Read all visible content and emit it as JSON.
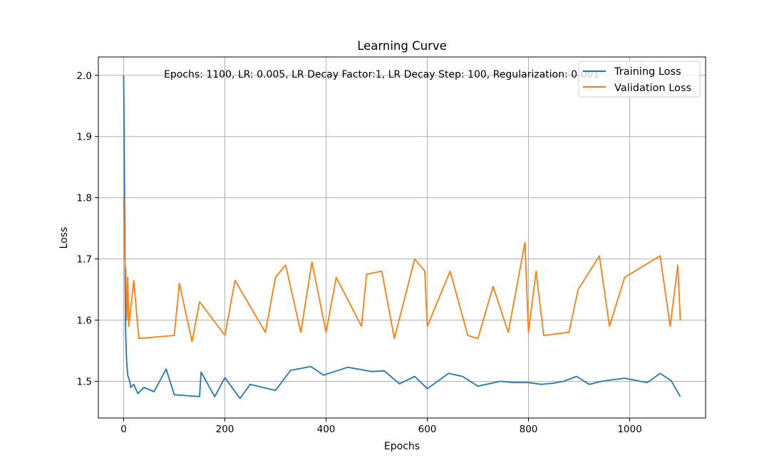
{
  "chart_data": {
    "type": "line",
    "title": "Learning Curve",
    "xlabel": "Epochs",
    "ylabel": "Loss",
    "xlim": [
      -50,
      1150
    ],
    "ylim": [
      1.44,
      2.03
    ],
    "x_ticks": [
      0,
      200,
      400,
      600,
      800,
      1000
    ],
    "y_ticks": [
      1.5,
      1.6,
      1.7,
      1.8,
      1.9,
      2.0
    ],
    "grid": true,
    "legend_position": "top-right",
    "annotation": "Epochs: 1100, LR: 0.005, LR Decay Factor:1, LR Decay Step: 100, Regularization: 0.001",
    "series": [
      {
        "name": "Training Loss",
        "color": "#1f77b4",
        "points": [
          [
            0,
            2.0
          ],
          [
            1,
            1.9
          ],
          [
            2,
            1.78
          ],
          [
            3,
            1.66
          ],
          [
            4,
            1.58
          ],
          [
            5,
            1.55
          ],
          [
            6,
            1.53
          ],
          [
            8,
            1.51
          ],
          [
            10,
            1.505
          ],
          [
            12,
            1.5
          ],
          [
            14,
            1.49
          ],
          [
            20,
            1.495
          ],
          [
            28,
            1.48
          ],
          [
            40,
            1.49
          ],
          [
            60,
            1.483
          ],
          [
            84,
            1.52
          ],
          [
            100,
            1.478
          ],
          [
            150,
            1.475
          ],
          [
            153,
            1.515
          ],
          [
            180,
            1.475
          ],
          [
            200,
            1.506
          ],
          [
            230,
            1.472
          ],
          [
            250,
            1.495
          ],
          [
            300,
            1.485
          ],
          [
            330,
            1.518
          ],
          [
            370,
            1.524
          ],
          [
            395,
            1.51
          ],
          [
            443,
            1.523
          ],
          [
            490,
            1.516
          ],
          [
            515,
            1.517
          ],
          [
            545,
            1.496
          ],
          [
            575,
            1.508
          ],
          [
            600,
            1.488
          ],
          [
            642,
            1.513
          ],
          [
            670,
            1.508
          ],
          [
            700,
            1.492
          ],
          [
            745,
            1.5
          ],
          [
            770,
            1.498
          ],
          [
            800,
            1.498
          ],
          [
            825,
            1.495
          ],
          [
            850,
            1.497
          ],
          [
            870,
            1.5
          ],
          [
            895,
            1.508
          ],
          [
            920,
            1.495
          ],
          [
            945,
            1.5
          ],
          [
            970,
            1.503
          ],
          [
            990,
            1.505
          ],
          [
            1035,
            1.498
          ],
          [
            1060,
            1.513
          ],
          [
            1082,
            1.501
          ],
          [
            1100,
            1.475
          ]
        ]
      },
      {
        "name": "Validation Loss",
        "color": "#ff7f0e",
        "points": [
          [
            0,
            1.8
          ],
          [
            1,
            1.75
          ],
          [
            2,
            1.7
          ],
          [
            4,
            1.68
          ],
          [
            6,
            1.6
          ],
          [
            8,
            1.67
          ],
          [
            10,
            1.59
          ],
          [
            20,
            1.665
          ],
          [
            30,
            1.57
          ],
          [
            100,
            1.575
          ],
          [
            110,
            1.66
          ],
          [
            135,
            1.565
          ],
          [
            150,
            1.63
          ],
          [
            200,
            1.575
          ],
          [
            220,
            1.665
          ],
          [
            280,
            1.58
          ],
          [
            300,
            1.67
          ],
          [
            320,
            1.69
          ],
          [
            350,
            1.58
          ],
          [
            372,
            1.695
          ],
          [
            400,
            1.58
          ],
          [
            420,
            1.67
          ],
          [
            470,
            1.59
          ],
          [
            480,
            1.675
          ],
          [
            510,
            1.68
          ],
          [
            535,
            1.57
          ],
          [
            575,
            1.7
          ],
          [
            595,
            1.68
          ],
          [
            600,
            1.59
          ],
          [
            645,
            1.68
          ],
          [
            680,
            1.575
          ],
          [
            700,
            1.57
          ],
          [
            730,
            1.655
          ],
          [
            760,
            1.58
          ],
          [
            793,
            1.727
          ],
          [
            800,
            1.58
          ],
          [
            815,
            1.68
          ],
          [
            830,
            1.575
          ],
          [
            880,
            1.58
          ],
          [
            898,
            1.65
          ],
          [
            940,
            1.705
          ],
          [
            960,
            1.59
          ],
          [
            990,
            1.67
          ],
          [
            1060,
            1.705
          ],
          [
            1080,
            1.59
          ],
          [
            1095,
            1.69
          ],
          [
            1100,
            1.6
          ]
        ]
      }
    ]
  }
}
